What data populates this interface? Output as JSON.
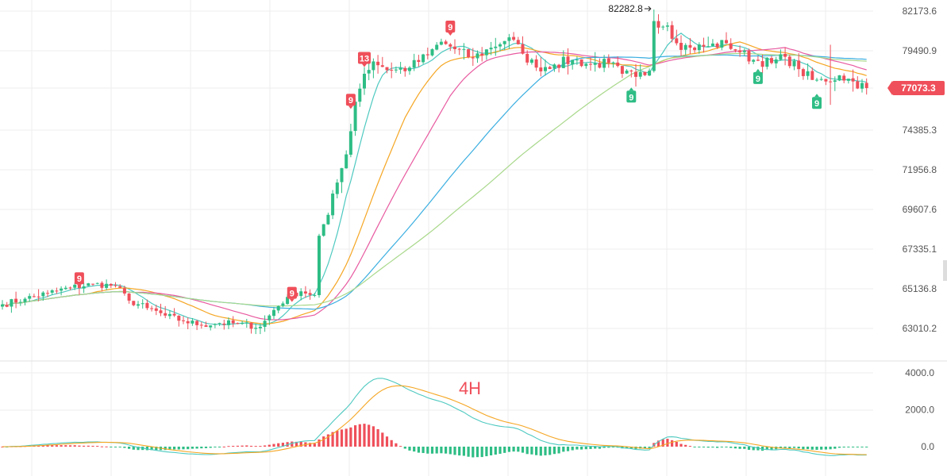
{
  "chart_data": {
    "type": "candlestick",
    "timeframe_label": "4H",
    "colors": {
      "up": "#2ebd85",
      "down": "#ef4f5a",
      "ma1": "#4ec9c0",
      "ma2": "#f5a623",
      "ma3": "#e85aa0",
      "ma4": "#3aaee0",
      "ma5": "#a8d88a",
      "macd_line": "#4ec9c0",
      "signal_line": "#f5a623",
      "grid": "#eeeeee",
      "price_tag": "#ef4f5a",
      "badge_up": "#2ebd85",
      "badge_down": "#ef4f5a"
    },
    "price_axis": {
      "ticks": [
        "82173.6",
        "79490.9",
        "77073.3",
        "74385.3",
        "71956.8",
        "69607.6",
        "67335.1",
        "65136.8",
        "63010.2"
      ],
      "range": [
        61900,
        82700
      ]
    },
    "current_price": "77073.3",
    "peak_annotation": {
      "label": "82282.8",
      "candle_index": 144
    },
    "badges": [
      {
        "label": "9",
        "candle_index": 17,
        "value": 65700,
        "color": "down",
        "pos": "above"
      },
      {
        "label": "9",
        "candle_index": 64,
        "value": 64900,
        "color": "down",
        "pos": "above"
      },
      {
        "label": "9",
        "candle_index": 77,
        "value": 76300,
        "color": "down",
        "pos": "above"
      },
      {
        "label": "13",
        "candle_index": 80,
        "value": 79000,
        "color": "down",
        "pos": "above"
      },
      {
        "label": "9",
        "candle_index": 99,
        "value": 81100,
        "color": "down",
        "pos": "above"
      },
      {
        "label": "9",
        "candle_index": 139,
        "value": 76500,
        "color": "up",
        "pos": "below"
      },
      {
        "label": "9",
        "candle_index": 167,
        "value": 77700,
        "color": "up",
        "pos": "below"
      },
      {
        "label": "9",
        "candle_index": 180,
        "value": 76100,
        "color": "up",
        "pos": "below"
      }
    ],
    "macd_axis": {
      "ticks": [
        "4000.0",
        "2000.0",
        "0.0"
      ],
      "range": [
        -1000,
        4200
      ]
    },
    "close_anchors": [
      [
        0,
        64300
      ],
      [
        5,
        64600
      ],
      [
        10,
        64900
      ],
      [
        15,
        65200
      ],
      [
        20,
        65400
      ],
      [
        25,
        65300
      ],
      [
        28,
        64500
      ],
      [
        32,
        64100
      ],
      [
        36,
        63700
      ],
      [
        40,
        63400
      ],
      [
        44,
        63200
      ],
      [
        48,
        63300
      ],
      [
        52,
        63250
      ],
      [
        57,
        63100
      ],
      [
        60,
        64000
      ],
      [
        63,
        64700
      ],
      [
        66,
        65000
      ],
      [
        69,
        64800
      ],
      [
        70,
        68100
      ],
      [
        72,
        69300
      ],
      [
        74,
        71200
      ],
      [
        76,
        72900
      ],
      [
        78,
        76200
      ],
      [
        80,
        78000
      ],
      [
        82,
        78800
      ],
      [
        86,
        78200
      ],
      [
        90,
        78400
      ],
      [
        94,
        79200
      ],
      [
        97,
        80100
      ],
      [
        100,
        79600
      ],
      [
        104,
        79000
      ],
      [
        108,
        79700
      ],
      [
        112,
        80400
      ],
      [
        115,
        79300
      ],
      [
        118,
        78400
      ],
      [
        122,
        78600
      ],
      [
        126,
        78900
      ],
      [
        130,
        78600
      ],
      [
        134,
        78700
      ],
      [
        137,
        78000
      ],
      [
        140,
        77800
      ],
      [
        143,
        78200
      ],
      [
        144,
        81500
      ],
      [
        147,
        81200
      ],
      [
        149,
        80000
      ],
      [
        152,
        79700
      ],
      [
        156,
        79800
      ],
      [
        160,
        80000
      ],
      [
        163,
        79400
      ],
      [
        166,
        78900
      ],
      [
        170,
        78700
      ],
      [
        173,
        79100
      ],
      [
        176,
        78300
      ],
      [
        179,
        77600
      ],
      [
        182,
        77500
      ],
      [
        185,
        77900
      ],
      [
        188,
        77500
      ],
      [
        191,
        77073
      ]
    ]
  }
}
